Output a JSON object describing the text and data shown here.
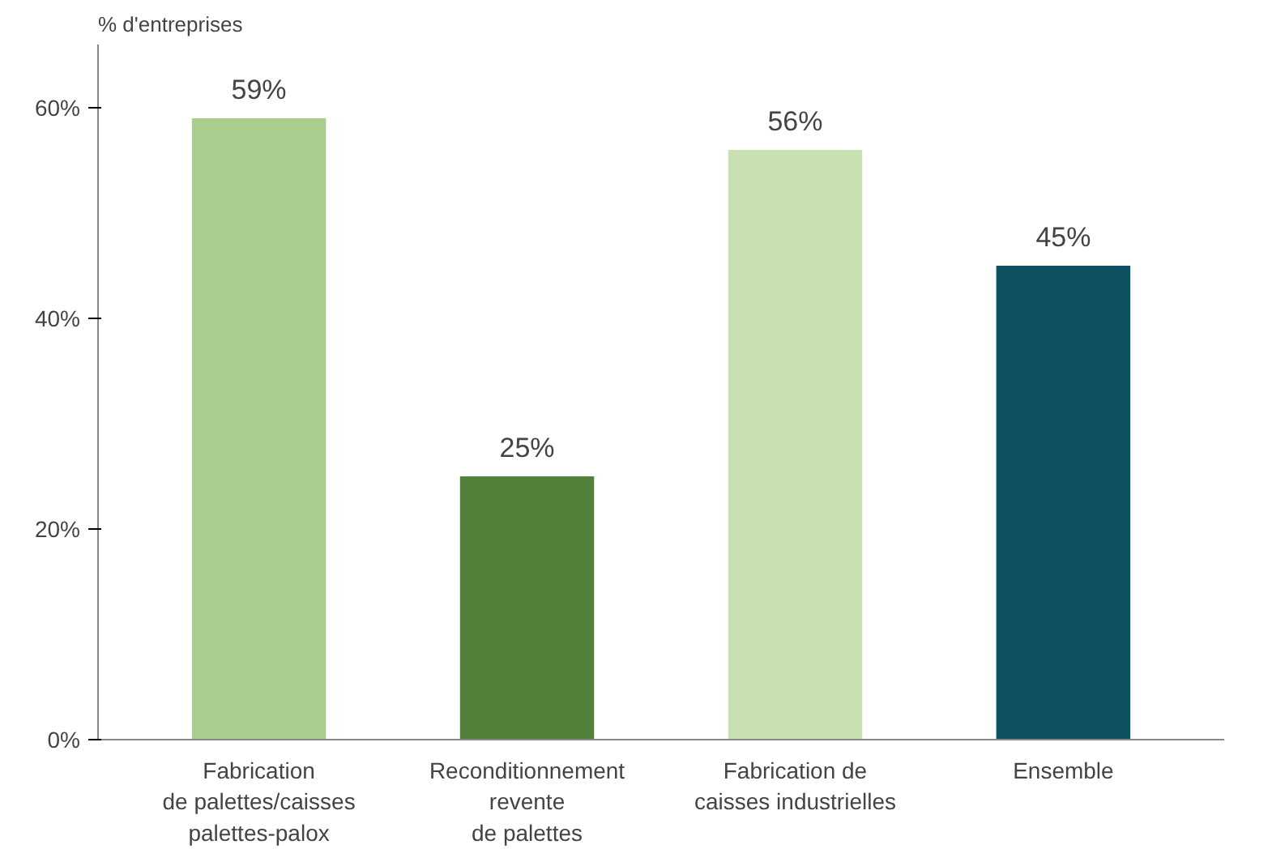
{
  "chart_data": {
    "type": "bar",
    "ylabel": "% d'entreprises",
    "categories": [
      "Fabrication\nde palettes/caisses\npalettes-palox",
      "Reconditionnement\nrevente\nde palettes",
      "Fabrication de\ncaisses industrielles",
      "Ensemble"
    ],
    "values": [
      59,
      25,
      56,
      45
    ],
    "colors": [
      "#a8cd8c",
      "#52813c",
      "#c9e1b2",
      "#0e5060"
    ],
    "ylim": [
      0,
      66
    ],
    "yticks": [
      {
        "value": 0,
        "label": "0%"
      },
      {
        "value": 20,
        "label": "20%"
      },
      {
        "value": 40,
        "label": "40%"
      },
      {
        "value": 60,
        "label": "60%"
      }
    ],
    "value_labels": [
      "59%",
      "25%",
      "56%",
      "45%"
    ],
    "grid": false
  }
}
